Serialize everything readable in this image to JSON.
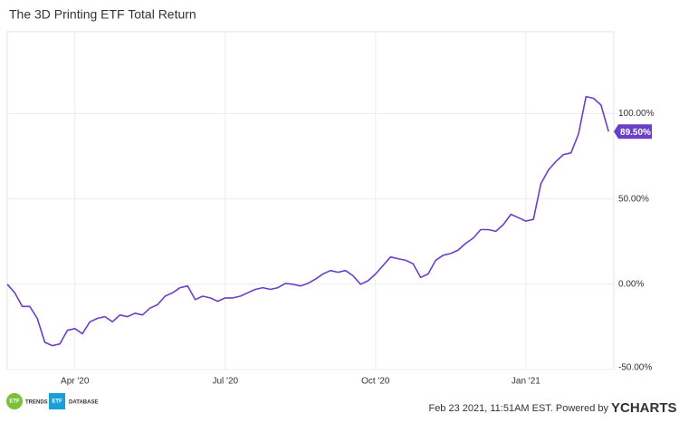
{
  "chart_data": {
    "type": "line",
    "title": "The 3D Printing ETF Total Return",
    "x": [
      null,
      null,
      null,
      null,
      null,
      null,
      null,
      null,
      null,
      "Apr '20",
      null,
      null,
      null,
      null,
      null,
      null,
      null,
      null,
      null,
      null,
      null,
      null,
      null,
      null,
      null,
      null,
      null,
      null,
      null,
      "Jul '20",
      null,
      null,
      null,
      null,
      null,
      null,
      null,
      null,
      null,
      null,
      null,
      null,
      null,
      null,
      null,
      null,
      null,
      null,
      null,
      "Oct '20",
      null,
      null,
      null,
      null,
      null,
      null,
      null,
      null,
      null,
      null,
      null,
      null,
      null,
      null,
      null,
      null,
      null,
      null,
      null,
      "Jan '21",
      null,
      null,
      null,
      null,
      null,
      null,
      null,
      null,
      null,
      null,
      null
    ],
    "series": [
      {
        "color": "#6a3fc8",
        "values": [
          0,
          -5,
          -13,
          -13,
          -20,
          -34,
          -36,
          -35,
          -27,
          -26,
          -29,
          -22,
          -20,
          -19,
          -22,
          -18,
          -19,
          -17,
          -18,
          -14,
          -12,
          -7,
          -5,
          -2,
          -1,
          -9,
          -7,
          -8,
          -10,
          -8,
          -8,
          -7,
          -5,
          -3,
          -2,
          -3,
          -2,
          0.5,
          0,
          -1,
          0.5,
          3,
          6,
          8,
          7,
          8,
          5,
          0,
          2,
          6,
          11,
          16,
          15,
          14,
          12,
          4,
          6,
          14,
          17,
          18,
          20,
          24,
          27,
          32,
          32,
          31,
          35,
          41,
          39,
          37,
          38,
          59,
          67,
          72,
          76,
          77,
          88,
          110,
          109,
          105,
          89.5
        ],
        "value_labels": [
          null,
          null,
          null,
          null,
          null,
          null,
          null,
          null,
          null,
          null,
          null,
          null,
          null,
          null,
          null,
          null,
          null,
          null,
          null,
          null,
          null,
          null,
          null,
          null,
          null,
          null,
          null,
          null,
          null,
          null,
          null,
          null,
          null,
          null,
          null,
          null,
          null,
          null,
          null,
          null,
          null,
          null,
          null,
          null,
          null,
          null,
          null,
          null,
          null,
          null,
          null,
          null,
          null,
          null,
          null,
          null,
          null,
          null,
          null,
          null,
          null,
          null,
          null,
          null,
          null,
          null,
          null,
          null,
          null,
          null,
          null,
          null,
          null,
          null,
          null,
          null,
          null,
          null,
          null,
          null,
          "89.50%"
        ]
      }
    ],
    "ylim": [
      -50,
      148
    ],
    "yticks": [
      {
        "value": -50,
        "label": "-50.00%"
      },
      {
        "value": 0,
        "label": "0.00%"
      },
      {
        "value": 50,
        "label": "50.00%"
      },
      {
        "value": 100,
        "label": "100.00%"
      }
    ],
    "grid": true
  },
  "footer": {
    "logo1": "ETF",
    "logo1_text": "TRENDS",
    "logo2": "ETF",
    "logo2_text": "DATABASE",
    "timestamp": "Feb 23 2021, 11:51AM EST. Powered by",
    "brand": "YCHARTS"
  }
}
